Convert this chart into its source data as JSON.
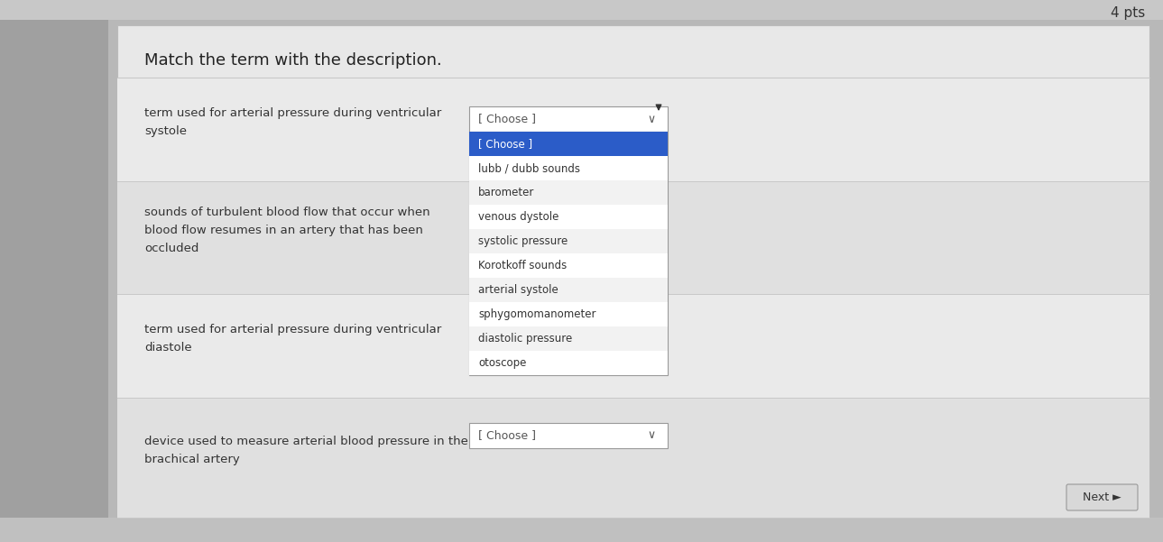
{
  "bg_color": "#b8b8b8",
  "top_strip_color": "#c0c0c0",
  "content_bg": "#e8e8e8",
  "title": "Match the term with the description.",
  "pts_label": "4 pts",
  "questions": [
    "term used for arterial pressure during ventricular\nsystole",
    "sounds of turbulent blood flow that occur when\nblood flow resumes in an artery that has been\noccluded",
    "term used for arterial pressure during ventricular\ndiastole",
    "device used to measure arterial blood pressure in the\nbrachical artery"
  ],
  "dropdown_items": [
    {
      "text": "[ Choose ]",
      "bg": "#2b5cc8",
      "fg": "#ffffff"
    },
    {
      "text": "lubb / dubb sounds",
      "bg": "#ffffff",
      "fg": "#333333"
    },
    {
      "text": "barometer",
      "bg": "#f2f2f2",
      "fg": "#333333"
    },
    {
      "text": "venous dystole",
      "bg": "#ffffff",
      "fg": "#333333"
    },
    {
      "text": "systolic pressure",
      "bg": "#f2f2f2",
      "fg": "#333333"
    },
    {
      "text": "Korotkoff sounds",
      "bg": "#ffffff",
      "fg": "#333333"
    },
    {
      "text": "arterial systole",
      "bg": "#f2f2f2",
      "fg": "#333333"
    },
    {
      "text": "sphygomomanometer",
      "bg": "#ffffff",
      "fg": "#333333"
    },
    {
      "text": "diastolic pressure",
      "bg": "#f2f2f2",
      "fg": "#333333"
    },
    {
      "text": "otoscope",
      "bg": "#ffffff",
      "fg": "#333333"
    }
  ],
  "row_colors": [
    "#eaeaea",
    "#e0e0e0",
    "#eaeaea",
    "#e0e0e0"
  ],
  "separator_color": "#c8c8c8",
  "dd_border_color": "#999999",
  "next_btn_text": "Next ►",
  "choose_text": "[ Choose ]",
  "font_title": 13,
  "font_text": 9.5,
  "font_dd": 9,
  "font_pts": 11,
  "font_next": 9
}
